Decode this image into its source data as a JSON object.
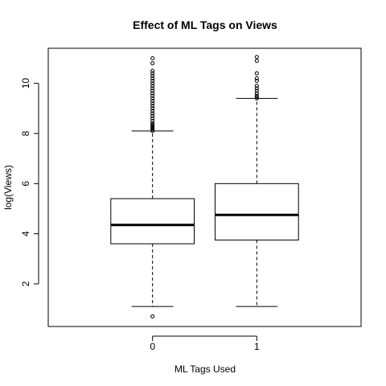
{
  "chart_data": {
    "type": "boxplot",
    "title": "Effect of ML Tags on Views",
    "xlabel": "ML Tags Used",
    "ylabel": "log(Views)",
    "categories": [
      "0",
      "1"
    ],
    "ylim": [
      0.3,
      11.4
    ],
    "yticks": [
      2,
      4,
      6,
      8,
      10
    ],
    "grid": false,
    "legend": "none",
    "boxes": [
      {
        "category": "0",
        "whisker_low": 1.1,
        "q1": 3.6,
        "median": 4.35,
        "q3": 5.4,
        "whisker_high": 8.1,
        "outliers": [
          0.7,
          8.1,
          8.15,
          8.2,
          8.25,
          8.3,
          8.35,
          8.4,
          8.5,
          8.6,
          8.7,
          8.8,
          8.9,
          9.0,
          9.1,
          9.2,
          9.3,
          9.4,
          9.5,
          9.6,
          9.7,
          9.8,
          9.9,
          10.0,
          10.1,
          10.2,
          10.3,
          10.4,
          10.5,
          10.8,
          11.0
        ]
      },
      {
        "category": "1",
        "whisker_low": 1.1,
        "q1": 3.75,
        "median": 4.75,
        "q3": 6.0,
        "whisker_high": 9.4,
        "outliers": [
          9.4,
          9.45,
          9.5,
          9.6,
          9.7,
          9.8,
          9.9,
          10.1,
          10.2,
          10.4,
          10.9,
          11.05
        ]
      }
    ]
  }
}
